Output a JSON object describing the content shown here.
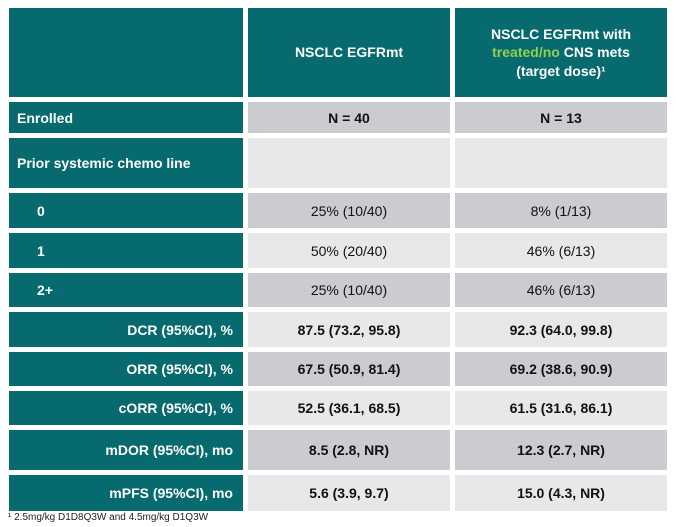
{
  "table": {
    "header_col1": "",
    "header_col2": "NSCLC EGFRmt",
    "header_col3": {
      "line1": "NSCLC EGFRmt with",
      "highlight": "treated/no",
      "line2_rest": " CNS mets",
      "line3": "(target dose)¹"
    },
    "rows": [
      {
        "label": "Enrolled",
        "values": [
          "N = 40",
          "N = 13"
        ]
      },
      {
        "label": "Prior systemic chemo line",
        "values": [
          "",
          ""
        ]
      },
      {
        "label": "0",
        "values": [
          "25% (10/40)",
          "8% (1/13)"
        ]
      },
      {
        "label": "1",
        "values": [
          "50% (20/40)",
          "46% (6/13)"
        ]
      },
      {
        "label": "2+",
        "values": [
          "25% (10/40)",
          "46% (6/13)"
        ]
      },
      {
        "label": "DCR (95%CI), %",
        "values": [
          "87.5 (73.2, 95.8)",
          "92.3 (64.0, 99.8)"
        ]
      },
      {
        "label": "ORR (95%CI), %",
        "values": [
          "67.5 (50.9, 81.4)",
          "69.2 (38.6, 90.9)"
        ]
      },
      {
        "label": "cORR (95%CI), %",
        "values": [
          "52.5 (36.1, 68.5)",
          "61.5 (31.6, 86.1)"
        ]
      },
      {
        "label": "mDOR (95%CI), mo",
        "values": [
          "8.5 (2.8, NR)",
          "12.3 (2.7, NR)"
        ]
      },
      {
        "label": "mPFS (95%CI), mo",
        "values": [
          "5.6 (3.9, 9.7)",
          "15.0 (4.3, NR)"
        ]
      }
    ]
  },
  "footnote": "¹ 2.5mg/kg D1D8Q3W and 4.5mg/kg D1Q3W",
  "colors": {
    "teal": "#076a6e",
    "green_highlight": "#92d050",
    "row_dark": "#cbccd0",
    "row_light": "#e7e8ea"
  }
}
